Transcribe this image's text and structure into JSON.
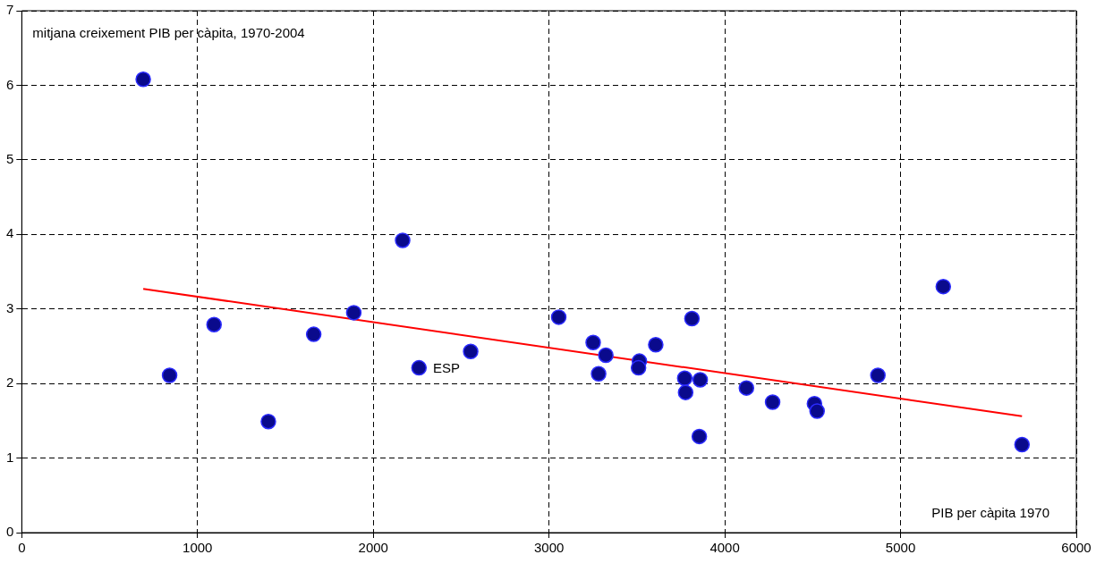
{
  "chart_data": {
    "type": "scatter",
    "ylabel": "mitjana creixement PIB per càpita, 1970-2004",
    "xlabel": "PIB per càpita 1970",
    "xlim": [
      0,
      6000
    ],
    "xticks": [
      0,
      1000,
      2000,
      3000,
      4000,
      5000,
      6000
    ],
    "ylim": [
      0,
      7
    ],
    "yticks": [
      0,
      1,
      2,
      3,
      4,
      5,
      6,
      7
    ],
    "grid": true,
    "legend": false,
    "series": [
      {
        "marker": "circle",
        "color": "#0a0a8c",
        "x": [
          691,
          841,
          1094,
          1403,
          1661,
          1889,
          2167,
          2260,
          2554,
          3055,
          3251,
          3282,
          3323,
          3514,
          3509,
          3607,
          3813,
          3772,
          3777,
          3860,
          3855,
          4123,
          4272,
          4510,
          4525,
          4871,
          5243,
          5691
        ],
        "values": [
          6.08,
          2.11,
          2.79,
          1.49,
          2.66,
          2.95,
          3.92,
          2.21,
          2.43,
          2.89,
          2.55,
          2.13,
          2.38,
          2.3,
          2.21,
          2.52,
          2.87,
          2.07,
          1.88,
          2.05,
          1.29,
          1.94,
          1.75,
          1.73,
          1.63,
          2.11,
          3.3,
          1.18
        ]
      },
      {
        "type": "line",
        "marker": "none",
        "color": "#ff0000",
        "x": [
          691,
          5691
        ],
        "values": [
          3.27,
          1.56
        ]
      }
    ],
    "annotations": [
      {
        "text": "ESP",
        "x": 2554,
        "y": 2.43
      }
    ]
  }
}
